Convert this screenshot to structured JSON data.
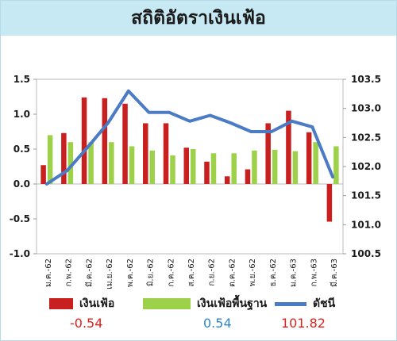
{
  "title": "สถิติอัตราเงินเฟ้อ",
  "chart_data": {
    "type": "bar+line",
    "categories": [
      "ม.ค.-62",
      "ก.พ.-62",
      "มี.ค.-62",
      "เม.ย.-62",
      "พ.ค.-62",
      "มิ.ย.-62",
      "ก.ค.-62",
      "ส.ค.-62",
      "ก.ย.-62",
      "ต.ค.-62",
      "พ.ย.-62",
      "ธ.ค.-62",
      "ม.ค.-63",
      "ก.พ.-63",
      "มี.ค.-63"
    ],
    "left_axis": {
      "ylim": [
        -1.0,
        1.5
      ],
      "ticks": [
        "1.5",
        "1.0",
        "0.5",
        "0.0",
        "-0.5",
        "-1.0"
      ]
    },
    "right_axis": {
      "ylim": [
        100.5,
        103.5
      ],
      "ticks": [
        "103.5",
        "103.0",
        "102.5",
        "102.0",
        "101.5",
        "101.0",
        "100.5"
      ]
    },
    "series": [
      {
        "name": "เงินเฟ้อ",
        "type": "bar",
        "axis": "left",
        "color": "#c8201f",
        "values": [
          0.27,
          0.73,
          1.24,
          1.23,
          1.15,
          0.87,
          0.87,
          0.52,
          0.32,
          0.11,
          0.21,
          0.87,
          1.05,
          0.74,
          -0.54
        ]
      },
      {
        "name": "เงินเฟ้อพื้นฐาน",
        "type": "bar",
        "axis": "left",
        "color": "#9ed14a",
        "values": [
          0.7,
          0.6,
          0.6,
          0.6,
          0.54,
          0.48,
          0.41,
          0.5,
          0.44,
          0.44,
          0.48,
          0.49,
          0.47,
          0.6,
          0.54
        ]
      },
      {
        "name": "ดัชนี",
        "type": "line",
        "axis": "right",
        "color": "#4a7bc4",
        "values": [
          101.7,
          101.93,
          102.33,
          102.75,
          103.3,
          102.93,
          102.93,
          102.78,
          102.88,
          102.75,
          102.6,
          102.6,
          102.78,
          102.68,
          101.82
        ]
      }
    ]
  },
  "legend": [
    {
      "label": "เงินเฟ้อ",
      "value": "-0.54",
      "value_color": "#e0201c",
      "swatch_color": "#c8201f",
      "kind": "bar"
    },
    {
      "label": "เงินเฟ้อพื้นฐาน",
      "value": "0.54",
      "value_color": "#2e86c8",
      "swatch_color": "#9ed14a",
      "kind": "bar"
    },
    {
      "label": "ดัชนี",
      "value": "101.82",
      "value_color": "#e0201c",
      "swatch_color": "#4a7bc4",
      "kind": "line"
    }
  ]
}
